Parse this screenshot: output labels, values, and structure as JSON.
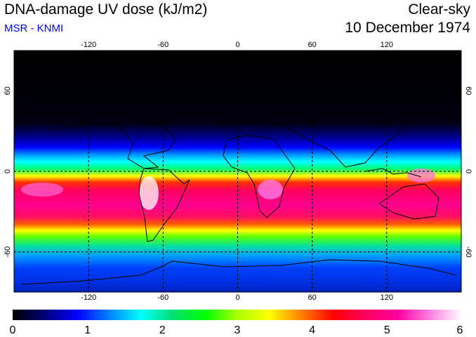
{
  "header": {
    "title": "DNA-damage UV dose (kJ/m2)",
    "subtitle": "MSR - KNMI",
    "sky_condition": "Clear-sky",
    "date": "10 December 1974"
  },
  "colors": {
    "subtitle": "#0000ff",
    "frame": "#000000"
  },
  "map": {
    "projection": "equirectangular",
    "lon_range": [
      -180,
      180
    ],
    "lat_range": [
      -90,
      90
    ],
    "lon_ticks_top": [
      "-120",
      "-60",
      "0",
      "60",
      "120"
    ],
    "lon_ticks_bottom": [
      "-120",
      "-60",
      "0",
      "60",
      "120"
    ],
    "lat_ticks_left": [
      "60",
      "0",
      "-60"
    ],
    "lat_ticks_right": [
      "60",
      "0",
      "-60"
    ],
    "lon_tick_values": [
      -120,
      -60,
      0,
      60,
      120
    ],
    "lat_tick_values": [
      60,
      0,
      -60
    ],
    "grid": "dashed"
  },
  "colorbar": {
    "min": 0,
    "max": 6,
    "labels": [
      "0",
      "1",
      "2",
      "3",
      "4",
      "5",
      "6"
    ],
    "stops": [
      "#000000",
      "#00007a",
      "#0000ff",
      "#0080ff",
      "#00ffff",
      "#00e070",
      "#00ff00",
      "#aaff00",
      "#ffff00",
      "#ff8000",
      "#ff0000",
      "#ff0060",
      "#ff00a0",
      "#ff80e0",
      "#ffffff"
    ]
  }
}
